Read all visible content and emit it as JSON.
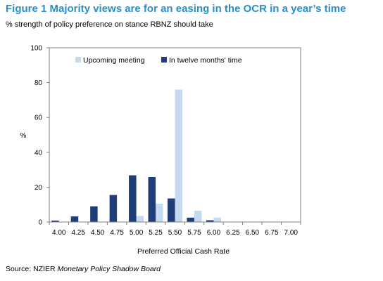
{
  "title": "Figure 1 Majority views are for an easing in the OCR in a year’s time",
  "subtitle": "% strength of policy preference on stance RBNZ should take",
  "source_prefix": "Source: NZIER ",
  "source_italic": "Monetary Policy Shadow Board",
  "colors": {
    "title": "#2a8ec8",
    "upcoming": "#c5d9ef",
    "twelve": "#1f3e78",
    "axis": "#808080"
  },
  "chart_data": {
    "type": "bar",
    "categories": [
      "4.00",
      "4.25",
      "4.50",
      "4.75",
      "5.00",
      "5.25",
      "5.50",
      "5.75",
      "6.00",
      "6.25",
      "6.50",
      "6.75",
      "7.00"
    ],
    "series": [
      {
        "name": "Upcoming meeting",
        "values": [
          0,
          0,
          0,
          0,
          3.5,
          10.5,
          76,
          6.5,
          2.5,
          0.3,
          0,
          0,
          0
        ]
      },
      {
        "name": "In twelve months' time",
        "values": [
          0.8,
          3.2,
          9,
          15.5,
          26.8,
          25.8,
          13.5,
          2.5,
          1.0,
          0,
          0,
          0,
          0
        ]
      }
    ],
    "xlabel": "Preferred  Official Cash Rate",
    "ylabel": "%",
    "yticks": [
      0,
      20,
      40,
      60,
      80,
      100
    ],
    "ylim": [
      0,
      100
    ],
    "grid": false,
    "legend_position": "top"
  }
}
